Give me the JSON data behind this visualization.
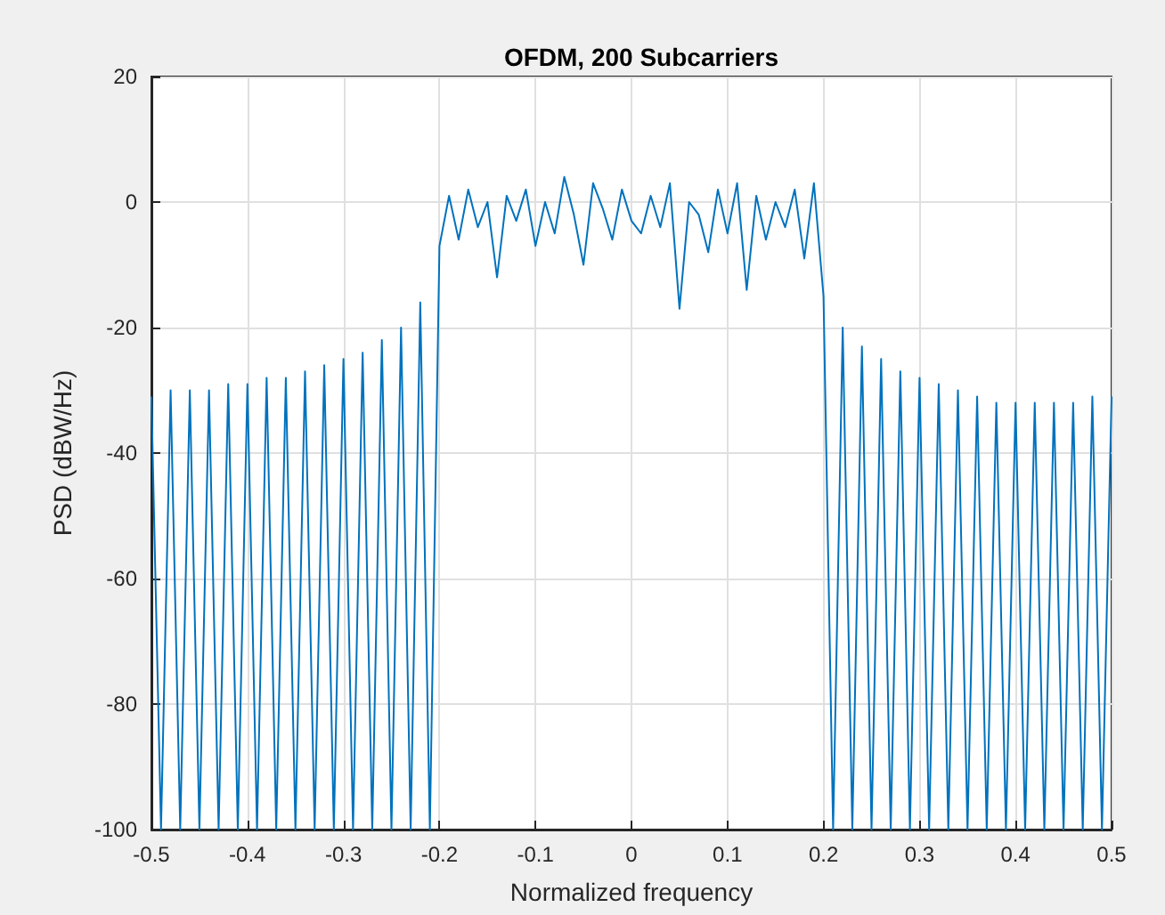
{
  "chart_data": {
    "type": "line",
    "title": "OFDM, 200 Subcarriers",
    "xlabel": "Normalized frequency",
    "ylabel": "PSD (dBW/Hz)",
    "xlim": [
      -0.5,
      0.5
    ],
    "xticks": [
      -0.5,
      -0.4,
      -0.3,
      -0.2,
      -0.1,
      0,
      0.1,
      0.2,
      0.3,
      0.4,
      0.5
    ],
    "ylim": [
      -100,
      20
    ],
    "yticks": [
      -100,
      -80,
      -60,
      -40,
      -20,
      0,
      20
    ],
    "grid": true,
    "marker": "none",
    "line_style": "solid",
    "series": [
      {
        "color": "#0072bd",
        "x": [
          -0.5,
          -0.49,
          -0.48,
          -0.47,
          -0.46,
          -0.45,
          -0.44,
          -0.43,
          -0.42,
          -0.41,
          -0.4,
          -0.39,
          -0.38,
          -0.37,
          -0.36,
          -0.35,
          -0.34,
          -0.33,
          -0.32,
          -0.31,
          -0.3,
          -0.29,
          -0.28,
          -0.27,
          -0.26,
          -0.25,
          -0.24,
          -0.23,
          -0.22,
          -0.21,
          -0.2,
          -0.19,
          -0.18,
          -0.17,
          -0.16,
          -0.15,
          -0.14,
          -0.13,
          -0.12,
          -0.11,
          -0.1,
          -0.09,
          -0.08,
          -0.07,
          -0.06,
          -0.05,
          -0.04,
          -0.03,
          -0.02,
          -0.01,
          0,
          0.01,
          0.02,
          0.03,
          0.04,
          0.05,
          0.06,
          0.07,
          0.08,
          0.09,
          0.1,
          0.11,
          0.12,
          0.13,
          0.14,
          0.15,
          0.16,
          0.17,
          0.18,
          0.19,
          0.2,
          0.21,
          0.22,
          0.23,
          0.24,
          0.25,
          0.26,
          0.27,
          0.28,
          0.29,
          0.3,
          0.31,
          0.32,
          0.33,
          0.34,
          0.35,
          0.36,
          0.37,
          0.38,
          0.39,
          0.4,
          0.41,
          0.42,
          0.43,
          0.44,
          0.45,
          0.46,
          0.47,
          0.48,
          0.49,
          0.5
        ],
        "values": [
          -31,
          -100,
          -30,
          -100,
          -30,
          -100,
          -30,
          -100,
          -29,
          -100,
          -29,
          -100,
          -28,
          -100,
          -28,
          -100,
          -27,
          -100,
          -26,
          -100,
          -25,
          -100,
          -24,
          -100,
          -22,
          -100,
          -20,
          -100,
          -16,
          -100,
          -7,
          1,
          -6,
          2,
          -4,
          0,
          -12,
          1,
          -3,
          2,
          -7,
          0,
          -5,
          4,
          -2,
          -10,
          3,
          -1,
          -6,
          2,
          -3,
          -5,
          1,
          -4,
          3,
          -17,
          0,
          -2,
          -8,
          2,
          -5,
          3,
          -14,
          1,
          -6,
          0,
          -4,
          2,
          -9,
          3,
          -15,
          -100,
          -20,
          -100,
          -23,
          -100,
          -25,
          -100,
          -27,
          -100,
          -28,
          -100,
          -29,
          -100,
          -30,
          -100,
          -31,
          -100,
          -32,
          -100,
          -32,
          -100,
          -32,
          -100,
          -32,
          -100,
          -32,
          -100,
          -31,
          -100,
          -31
        ]
      }
    ]
  }
}
